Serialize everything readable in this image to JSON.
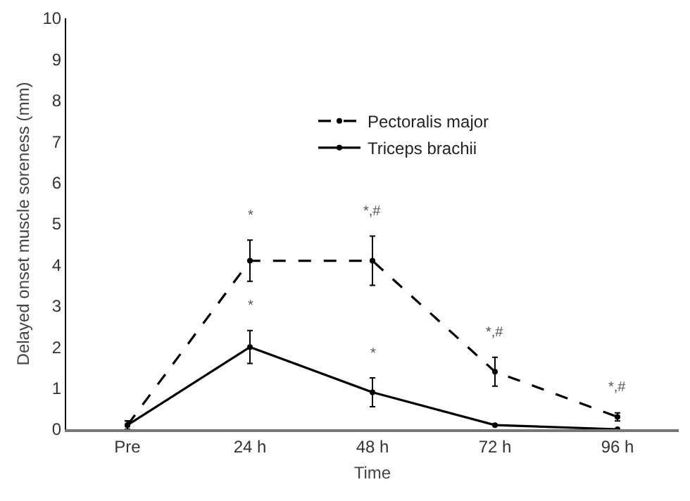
{
  "chart_data": {
    "type": "line",
    "xlabel": "Time",
    "ylabel": "Delayed onset muscle soreness (mm)",
    "categories": [
      "Pre",
      "24 h",
      "48 h",
      "72 h",
      "96 h"
    ],
    "series": [
      {
        "name": "Pectoralis major",
        "color": "#000000",
        "line_style": "dashed",
        "values": [
          0.1,
          4.1,
          4.1,
          1.4,
          0.3
        ],
        "errors": [
          0.1,
          0.5,
          0.6,
          0.35,
          0.1
        ]
      },
      {
        "name": "Triceps brachii",
        "color": "#000000",
        "line_style": "solid",
        "values": [
          0.1,
          2.0,
          0.9,
          0.1,
          0.0
        ],
        "errors": [
          0.1,
          0.4,
          0.35,
          null,
          null
        ]
      }
    ],
    "ylim": [
      0,
      10
    ],
    "yticks": [
      0,
      1,
      2,
      3,
      4,
      5,
      6,
      7,
      8,
      9,
      10
    ],
    "marker": "circle",
    "grid": false,
    "legend": "top",
    "annotations": [
      {
        "text": "*",
        "x": "24 h",
        "y": 4.1
      },
      {
        "text": "*,#",
        "x": "48 h",
        "y": 4.1
      },
      {
        "text": "*,#",
        "x": "72 h",
        "y": 1.4
      },
      {
        "text": "*,#",
        "x": "96 h",
        "y": 0.3
      },
      {
        "text": "*",
        "x": "24 h",
        "y": 2.0
      },
      {
        "text": "*",
        "x": "48 h",
        "y": 0.9
      }
    ]
  }
}
